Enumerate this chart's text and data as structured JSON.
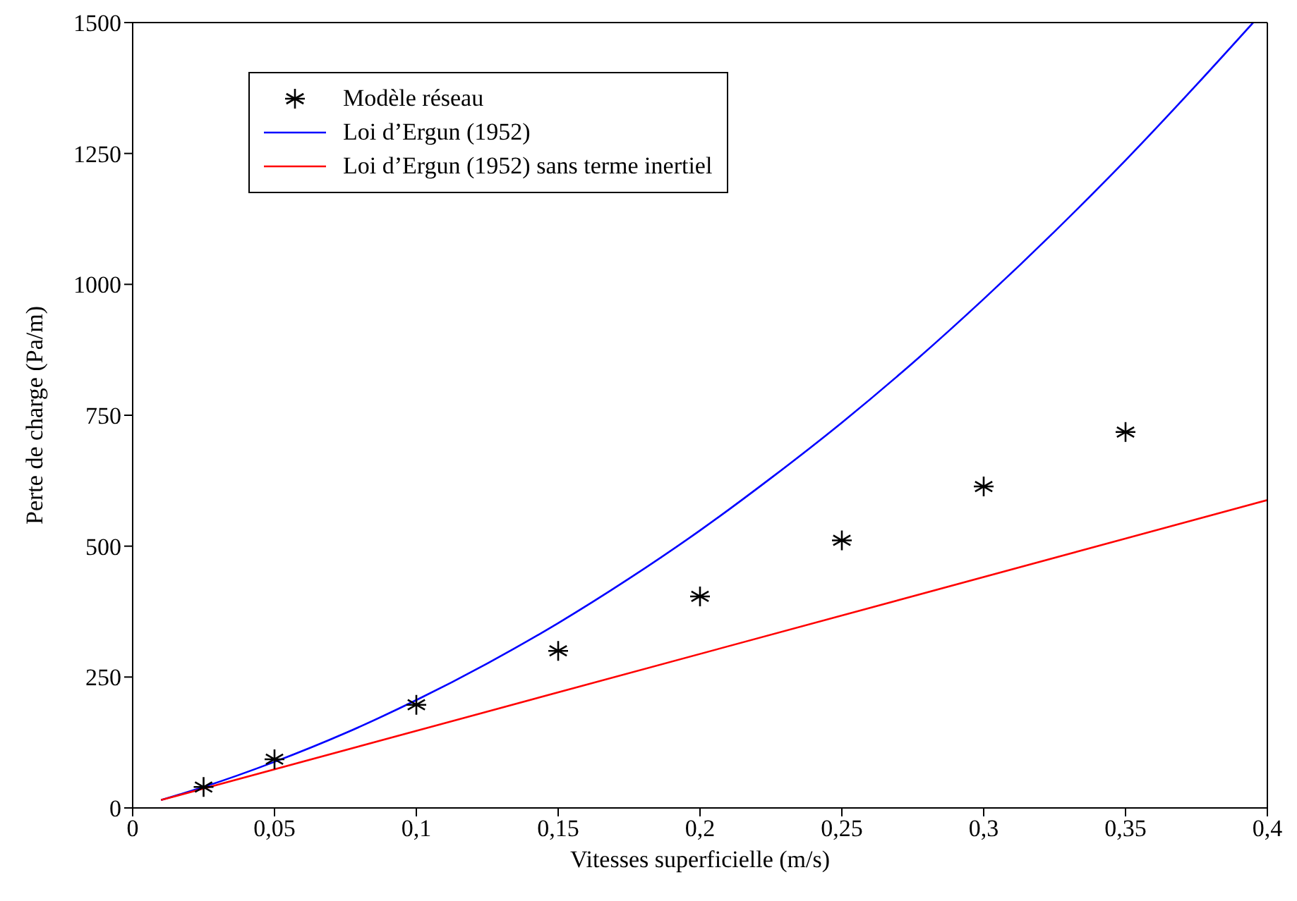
{
  "chart_data": {
    "type": "line",
    "xlabel": "Vitesses superficielle (m/s)",
    "ylabel": "Perte de charge (Pa/m)",
    "xlim": [
      0,
      0.4
    ],
    "xticks": [
      0,
      {
        "value": 0.05,
        "label": "0,05"
      },
      {
        "value": 0.1,
        "label": "0,1"
      },
      {
        "value": 0.15,
        "label": "0,15"
      },
      {
        "value": 0.2,
        "label": "0,2"
      },
      {
        "value": 0.25,
        "label": "0,25"
      },
      {
        "value": 0.3,
        "label": "0,3"
      },
      {
        "value": 0.35,
        "label": "0,35"
      },
      {
        "value": 0.4,
        "label": "0,4"
      }
    ],
    "ylim": [
      0,
      1500
    ],
    "yticks": [
      0,
      250,
      500,
      750,
      1000,
      1250,
      1500
    ],
    "legend": "top left",
    "series": [
      {
        "name": "Modèle réseau",
        "type": "scatter",
        "marker": "cross",
        "color": "#000000",
        "x": [
          0.025,
          0.05,
          0.1,
          0.15,
          0.2,
          0.25,
          0.3,
          0.35
        ],
        "values": [
          40,
          93,
          197,
          300,
          404,
          511,
          614,
          718
        ]
      },
      {
        "name": "Loi d’Ergun (1952)",
        "type": "line",
        "marker": "none",
        "color": "#0000ff",
        "x": [
          0.01,
          0.025,
          0.05,
          0.075,
          0.1,
          0.125,
          0.15,
          0.175,
          0.2,
          0.225,
          0.25,
          0.275,
          0.3,
          0.325,
          0.35,
          0.375,
          0.395
        ],
        "values": [
          15,
          40,
          88,
          143,
          206,
          276,
          353,
          438,
          530,
          630,
          736,
          850,
          972,
          1101,
          1237,
          1381,
          1500
        ]
      },
      {
        "name": "Loi d’Ergun (1952) sans terme inertiel",
        "type": "line",
        "marker": "none",
        "color": "#ff0000",
        "x": [
          0.01,
          0.4
        ],
        "values": [
          15,
          588
        ]
      }
    ]
  }
}
